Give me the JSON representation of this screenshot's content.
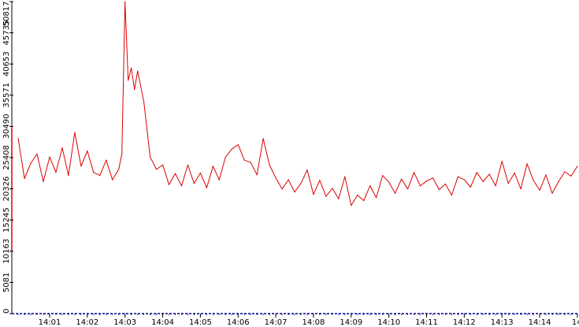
{
  "chart_data": {
    "type": "line",
    "title": "",
    "xlabel": "",
    "ylabel": "",
    "ylim": [
      0,
      50817
    ],
    "y_ticks": [
      0,
      5081,
      10163,
      15245,
      20326,
      25408,
      30490,
      35571,
      40653,
      45735,
      50817
    ],
    "y_tick_labels": [
      "0",
      "5081",
      "10163",
      "15245",
      "20326",
      "25408",
      "30490",
      "35571",
      "40653",
      "45735",
      "50817"
    ],
    "x_range_minutes": [
      "14:00:10",
      "14:15:00"
    ],
    "x_ticks": [
      "14:01",
      "14:02",
      "14:03",
      "14:04",
      "14:05",
      "14:06",
      "14:07",
      "14:08",
      "14:09",
      "14:10",
      "14:11",
      "14:12",
      "14:13",
      "14:14",
      "14"
    ],
    "grid": false,
    "colors": {
      "line": "#dd0000",
      "x_axis": "#00008b",
      "y_axis": "#dd0000"
    },
    "series": [
      {
        "x": [
          "14:00:10",
          "14:00:20",
          "14:00:30",
          "14:00:40",
          "14:00:50",
          "14:01:00",
          "14:01:10",
          "14:01:20",
          "14:01:30",
          "14:01:40",
          "14:01:50",
          "14:02:00",
          "14:02:10",
          "14:02:20",
          "14:02:30",
          "14:02:40",
          "14:02:50",
          "14:02:55",
          "14:03:00",
          "14:03:05",
          "14:03:10",
          "14:03:15",
          "14:03:20",
          "14:03:30",
          "14:03:40",
          "14:03:50",
          "14:04:00",
          "14:04:10",
          "14:04:20",
          "14:04:30",
          "14:04:40",
          "14:04:50",
          "14:05:00",
          "14:05:10",
          "14:05:20",
          "14:05:30",
          "14:05:40",
          "14:05:50",
          "14:06:00",
          "14:06:10",
          "14:06:20",
          "14:06:30",
          "14:06:40",
          "14:06:50",
          "14:07:00",
          "14:07:10",
          "14:07:20",
          "14:07:30",
          "14:07:40",
          "14:07:50",
          "14:08:00",
          "14:08:10",
          "14:08:20",
          "14:08:30",
          "14:08:40",
          "14:08:50",
          "14:09:00",
          "14:09:10",
          "14:09:20",
          "14:09:30",
          "14:09:40",
          "14:09:50",
          "14:10:00",
          "14:10:10",
          "14:10:20",
          "14:10:30",
          "14:10:40",
          "14:10:50",
          "14:11:00",
          "14:11:10",
          "14:11:20",
          "14:11:30",
          "14:11:40",
          "14:11:50",
          "14:12:00",
          "14:12:10",
          "14:12:20",
          "14:12:30",
          "14:12:40",
          "14:12:50",
          "14:13:00",
          "14:13:10",
          "14:13:20",
          "14:13:30",
          "14:13:40",
          "14:13:50",
          "14:14:00",
          "14:14:10",
          "14:14:20",
          "14:14:30",
          "14:14:40",
          "14:14:50",
          "14:15:00"
        ],
        "values": [
          28500,
          22000,
          24500,
          26000,
          21500,
          25500,
          23000,
          27000,
          22500,
          29500,
          24000,
          26500,
          23000,
          22500,
          25000,
          21800,
          23500,
          26000,
          50800,
          38000,
          40000,
          36500,
          39500,
          34500,
          25500,
          23500,
          24200,
          21000,
          22800,
          20800,
          24200,
          21200,
          22900,
          20500,
          24000,
          21800,
          25500,
          26800,
          27500,
          25000,
          24600,
          22600,
          28500,
          24200,
          22100,
          20300,
          21800,
          19800,
          21200,
          23400,
          19400,
          21700,
          19100,
          20400,
          18700,
          22300,
          17600,
          19300,
          18400,
          20800,
          18900,
          22500,
          21400,
          19600,
          21900,
          20300,
          23000,
          20800,
          21600,
          22100,
          20200,
          21100,
          19300,
          22300,
          21800,
          20600,
          23000,
          21500,
          22700,
          20800,
          24800,
          21200,
          22900,
          20300,
          24400,
          21700,
          20100,
          22600,
          19600,
          21500,
          23100,
          22400,
          24000
        ]
      }
    ]
  }
}
